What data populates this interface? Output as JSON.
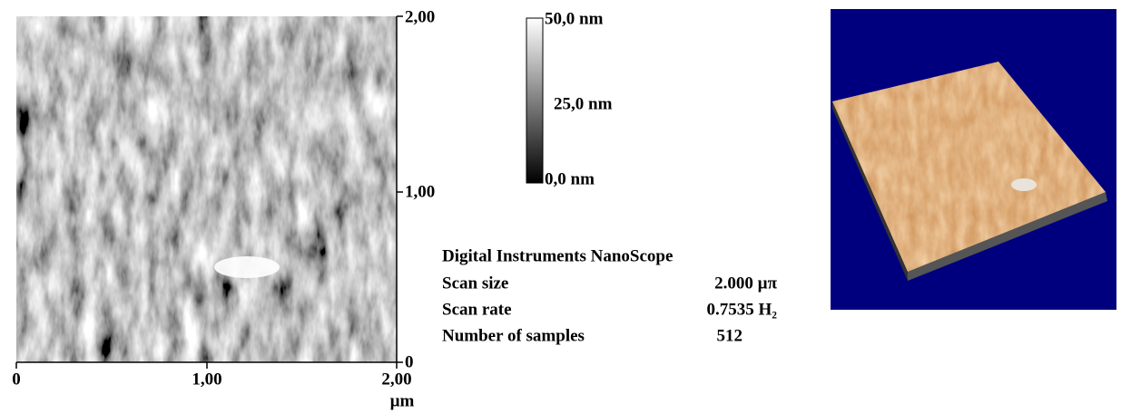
{
  "afm_image": {
    "y_axis": {
      "ticks": [
        "2,00",
        "1,00",
        "0"
      ]
    },
    "x_axis": {
      "ticks": [
        "0",
        "1,00",
        "2,00"
      ],
      "unit": "µm"
    },
    "color_scale": {
      "labels": [
        "50,0  nm",
        "25,0  nm",
        "0,0   nm"
      ]
    },
    "info": {
      "title": "Digital Instruments NanoScope",
      "rows": [
        [
          "Scan size",
          "2.000 µπ"
        ],
        [
          "Scan rate",
          "0.7535 H₂"
        ],
        [
          "Number of samples",
          "512"
        ]
      ]
    }
  }
}
